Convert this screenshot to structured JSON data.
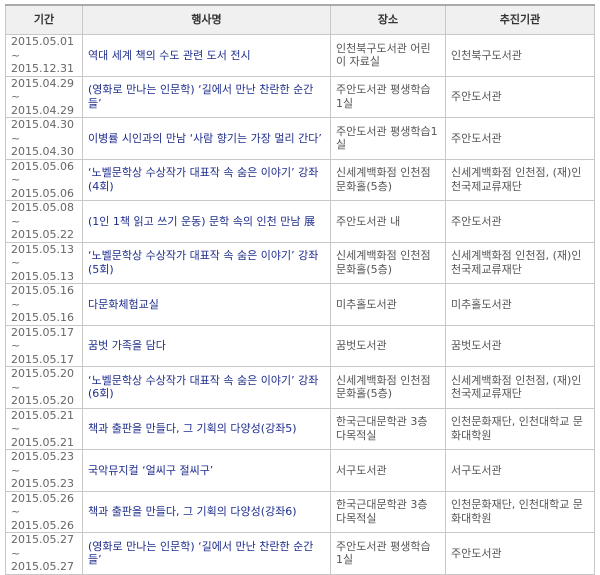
{
  "headers": [
    "기간",
    "행사명",
    "장소",
    "추진기관"
  ],
  "rows": [
    {
      "date": "2015.05.01 ~ 2015.12.31",
      "event": "역대 세계 책의 수도 관련 도서 전시",
      "venue": "인천북구도서관 어린이 자료실",
      "org": "인천북구도서관"
    },
    {
      "date": "2015.04.29 ~ 2015.04.29",
      "event": "(영화로 만나는 인문학) ‘길에서 만난 찬란한 순간들’",
      "venue": "주안도서관 평생학습 1실",
      "org": "주안도서관"
    },
    {
      "date": "2015.04.30 ~ 2015.04.30",
      "event": "이병률 시인과의 만남 ‘사람 향기는 가장 멀리 간다’",
      "venue": "주안도서관 평생학습1실",
      "org": "주안도서관"
    },
    {
      "date": "2015.05.06 ~ 2015.05.06",
      "event": "‘노벨문학상 수상작가 대표작 속 숨은 이야기’ 강좌(4회)",
      "venue": "신세계백화점 인천점 문화홀(5층)",
      "org": "신세계백화점 인천점, (재)인천국제교류재단"
    },
    {
      "date": "2015.05.08 ~ 2015.05.22",
      "event": "(1인 1책 읽고 쓰기 운동) 문학 속의 인천 만남 展",
      "venue": "주안도서관 내",
      "org": "주안도서관"
    },
    {
      "date": "2015.05.13 ~ 2015.05.13",
      "event": "‘노벨문학상 수상작가 대표작 속 숨은 이야기’ 강좌(5회)",
      "venue": "신세계백화점 인천점 문화홀(5층)",
      "org": "신세계백화점 인천점, (재)인천국제교류재단"
    },
    {
      "date": "2015.05.16 ~ 2015.05.16",
      "event": "다문화체험교실",
      "venue": "미추홀도서관",
      "org": "미추홀도서관"
    },
    {
      "date": "2015.05.17 ~ 2015.05.17",
      "event": "꿈벗 가족을 담다",
      "venue": "꿈벗도서관",
      "org": "꿈벗도서관"
    },
    {
      "date": "2015.05.20 ~ 2015.05.20",
      "event": "‘노벨문학상 수상작가 대표작 속 숨은 이야기’ 강좌(6회)",
      "venue": "신세계백화점 인천점 문화홀(5층)",
      "org": "신세계백화점 인천점, (재)인천국제교류재단"
    },
    {
      "date": "2015.05.21 ~ 2015.05.21",
      "event": "책과 출판을 만들다, 그 기획의 다양성(강좌5)",
      "venue": "한국근대문학관 3층 다목적실",
      "org": "인천문화재단, 인천대학교 문화대학원"
    },
    {
      "date": "2015.05.23 ~ 2015.05.23",
      "event": "국악뮤지컬 ‘얼씨구 절씨구’",
      "venue": "서구도서관",
      "org": "서구도서관"
    },
    {
      "date": "2015.05.26 ~ 2015.05.26",
      "event": "책과 출판을 만들다, 그 기획의 다양성(강좌6)",
      "venue": "한국근대문학관 3층 다목적실",
      "org": "인천문화재단, 인천대학교 문화대학원"
    },
    {
      "date": "2015.05.27 ~ 2015.05.27",
      "event": "(영화로 만나는 인문학) ‘길에서 만난 찬란한 순간들’",
      "venue": "주안도서관 평생학습 1실",
      "org": "주안도서관"
    }
  ]
}
